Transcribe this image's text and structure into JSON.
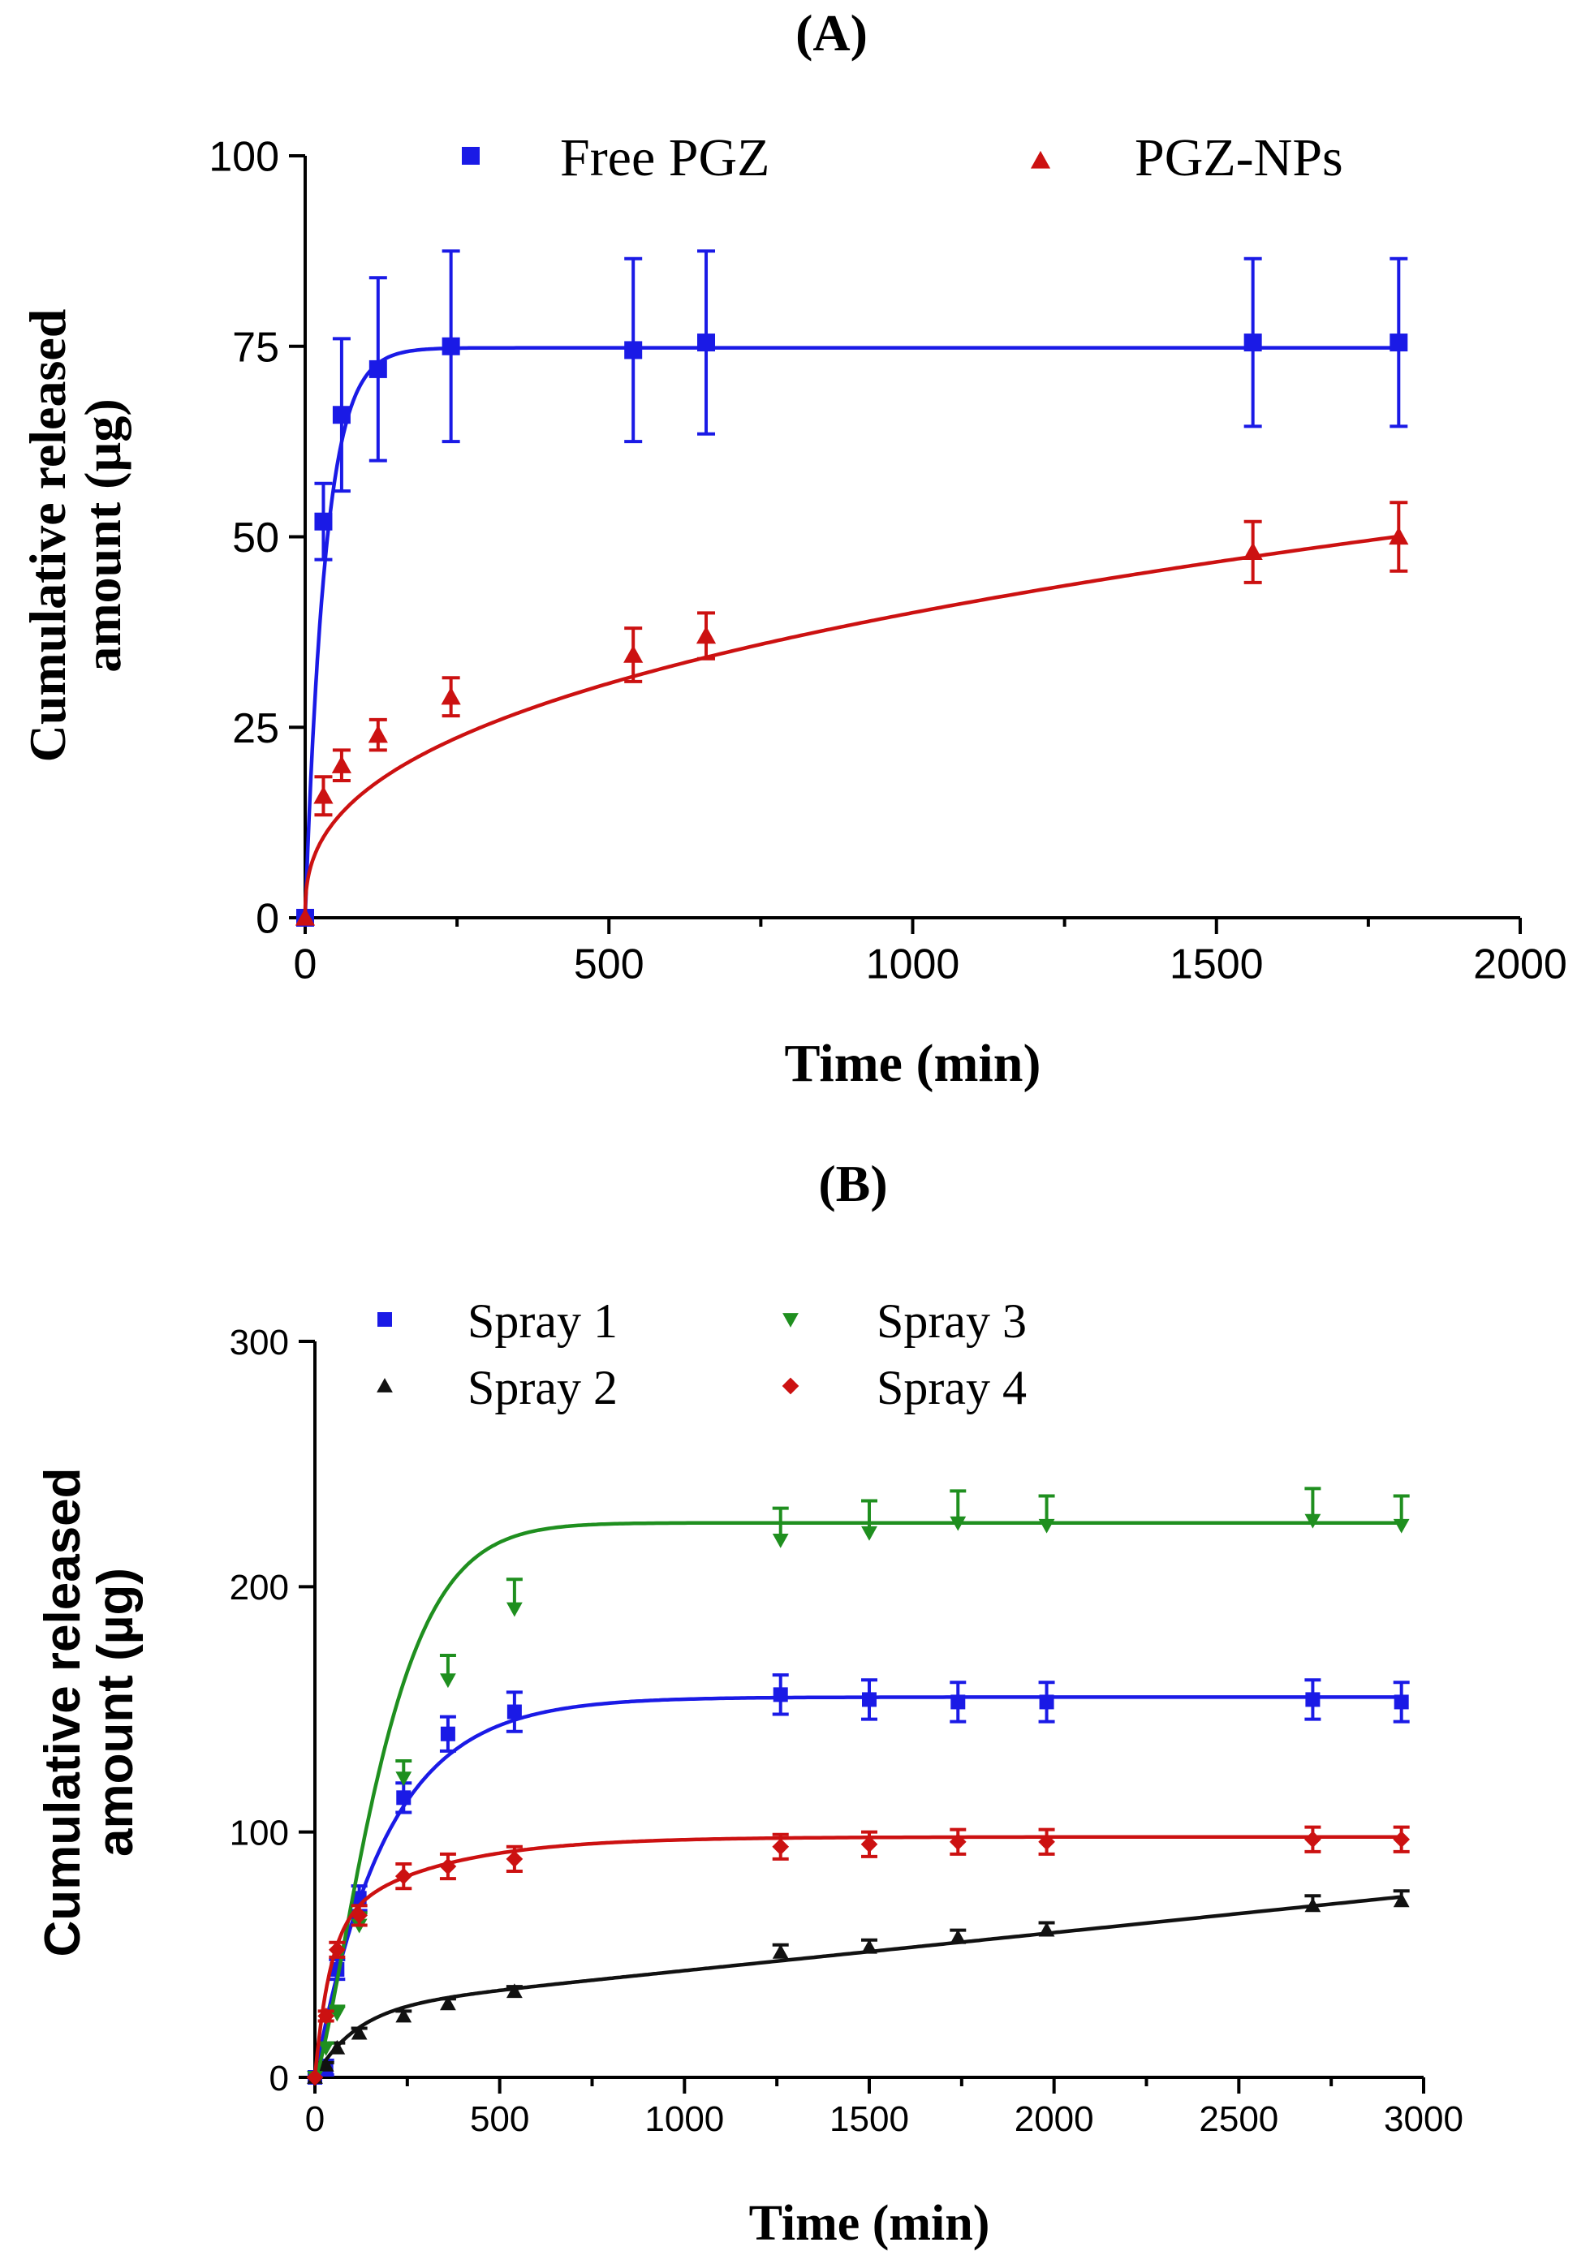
{
  "chart_data": [
    {
      "type": "scatter",
      "panel_label": "(A)",
      "xlabel": "Time (min)",
      "ylabel_line1": "Cumulative released",
      "ylabel_line2": "amount (µg)",
      "xlim": [
        0,
        2000
      ],
      "ylim": [
        0,
        100
      ],
      "xticks": [
        0,
        500,
        1000,
        1500,
        2000
      ],
      "yticks": [
        0,
        25,
        50,
        75,
        100
      ],
      "legend_position": "top",
      "series": [
        {
          "name": "Free PGZ",
          "marker": "square",
          "color": "#1a1ae6",
          "x": [
            0,
            30,
            60,
            120,
            240,
            540,
            660,
            1560,
            1800
          ],
          "y": [
            0,
            52,
            66,
            72,
            75,
            74.5,
            75.5,
            75.5,
            75.5
          ],
          "err": [
            0,
            5,
            10,
            12,
            12.5,
            12,
            12,
            11,
            11
          ],
          "fit": {
            "model": "one-phase",
            "plateau": 74.8,
            "k": 0.03
          }
        },
        {
          "name": "PGZ-NPs",
          "marker": "triangle",
          "color": "#cc1111",
          "x": [
            0,
            30,
            60,
            120,
            240,
            540,
            660,
            1560,
            1800
          ],
          "y": [
            0,
            16,
            20,
            24,
            29,
            34.5,
            37,
            48,
            50
          ],
          "err": [
            0,
            2.5,
            2,
            2,
            2.5,
            3.5,
            3,
            4,
            4.5
          ],
          "fit": {
            "model": "power",
            "a": 2.9,
            "b": 0.38
          }
        }
      ]
    },
    {
      "type": "scatter",
      "panel_label": "(B)",
      "xlabel": "Time (min)",
      "ylabel_line1": "Cumulative released",
      "ylabel_line2": "amount (µg)",
      "xlim": [
        0,
        3000
      ],
      "ylim": [
        0,
        300
      ],
      "xticks": [
        0,
        500,
        1000,
        1500,
        2000,
        2500,
        3000
      ],
      "yticks": [
        0,
        100,
        200,
        300
      ],
      "legend_position": "top-left",
      "series": [
        {
          "name": "Spray 1",
          "marker": "square",
          "color": "#1a1ae6",
          "x": [
            0,
            30,
            60,
            120,
            240,
            360,
            540,
            1260,
            1500,
            1740,
            1980,
            2700,
            2940
          ],
          "y": [
            0,
            4,
            44,
            73,
            114,
            140,
            149,
            156,
            154,
            153,
            153,
            154,
            153
          ],
          "err": [
            0,
            3,
            4,
            5,
            6,
            7,
            8,
            8,
            8,
            8,
            8,
            8,
            8
          ],
          "fit": {
            "model": "one-phase",
            "plateau": 155,
            "k": 0.0052
          }
        },
        {
          "name": "Spray 2",
          "marker": "triangle",
          "color": "#111111",
          "x": [
            0,
            30,
            60,
            120,
            240,
            360,
            540,
            1260,
            1500,
            1740,
            1980,
            2700,
            2940
          ],
          "y": [
            0,
            5,
            12,
            18,
            25,
            30,
            35,
            51,
            53,
            57,
            60,
            70,
            72
          ],
          "err": [
            0,
            1,
            2,
            2,
            2,
            2,
            2,
            3,
            3,
            3,
            3,
            4,
            4
          ],
          "fit": {
            "model": "two-phase",
            "p1": 28,
            "k1": 0.009,
            "slope": 0.0155
          }
        },
        {
          "name": "Spray 3",
          "marker": "triangle-down",
          "color": "#1f8f1f",
          "x": [
            0,
            30,
            60,
            120,
            240,
            360,
            540,
            1260,
            1500,
            1740,
            1980,
            2700,
            2940
          ],
          "y": [
            0,
            12,
            26,
            62,
            122,
            162,
            191,
            219,
            222,
            226,
            225,
            227,
            225
          ],
          "err": [
            0,
            2,
            3,
            5,
            7,
            10,
            12,
            13,
            13,
            13,
            12,
            13,
            12
          ],
          "fit": {
            "model": "sigmoid",
            "plateau": 226,
            "k": 0.0049,
            "n": 1.35
          }
        },
        {
          "name": "Spray 4",
          "marker": "diamond",
          "color": "#cc1111",
          "x": [
            0,
            30,
            60,
            120,
            240,
            360,
            540,
            1260,
            1500,
            1740,
            1980,
            2700,
            2940
          ],
          "y": [
            0,
            25,
            52,
            66,
            82,
            86,
            89,
            94,
            95,
            96,
            96,
            97,
            97
          ],
          "err": [
            0,
            2,
            3,
            4,
            5,
            5,
            5,
            5,
            5,
            5,
            5,
            5,
            5
          ],
          "fit": {
            "model": "two-phase-plateau",
            "p1": 60,
            "k1": 0.025,
            "p2": 38,
            "k2": 0.0035
          }
        }
      ]
    }
  ]
}
